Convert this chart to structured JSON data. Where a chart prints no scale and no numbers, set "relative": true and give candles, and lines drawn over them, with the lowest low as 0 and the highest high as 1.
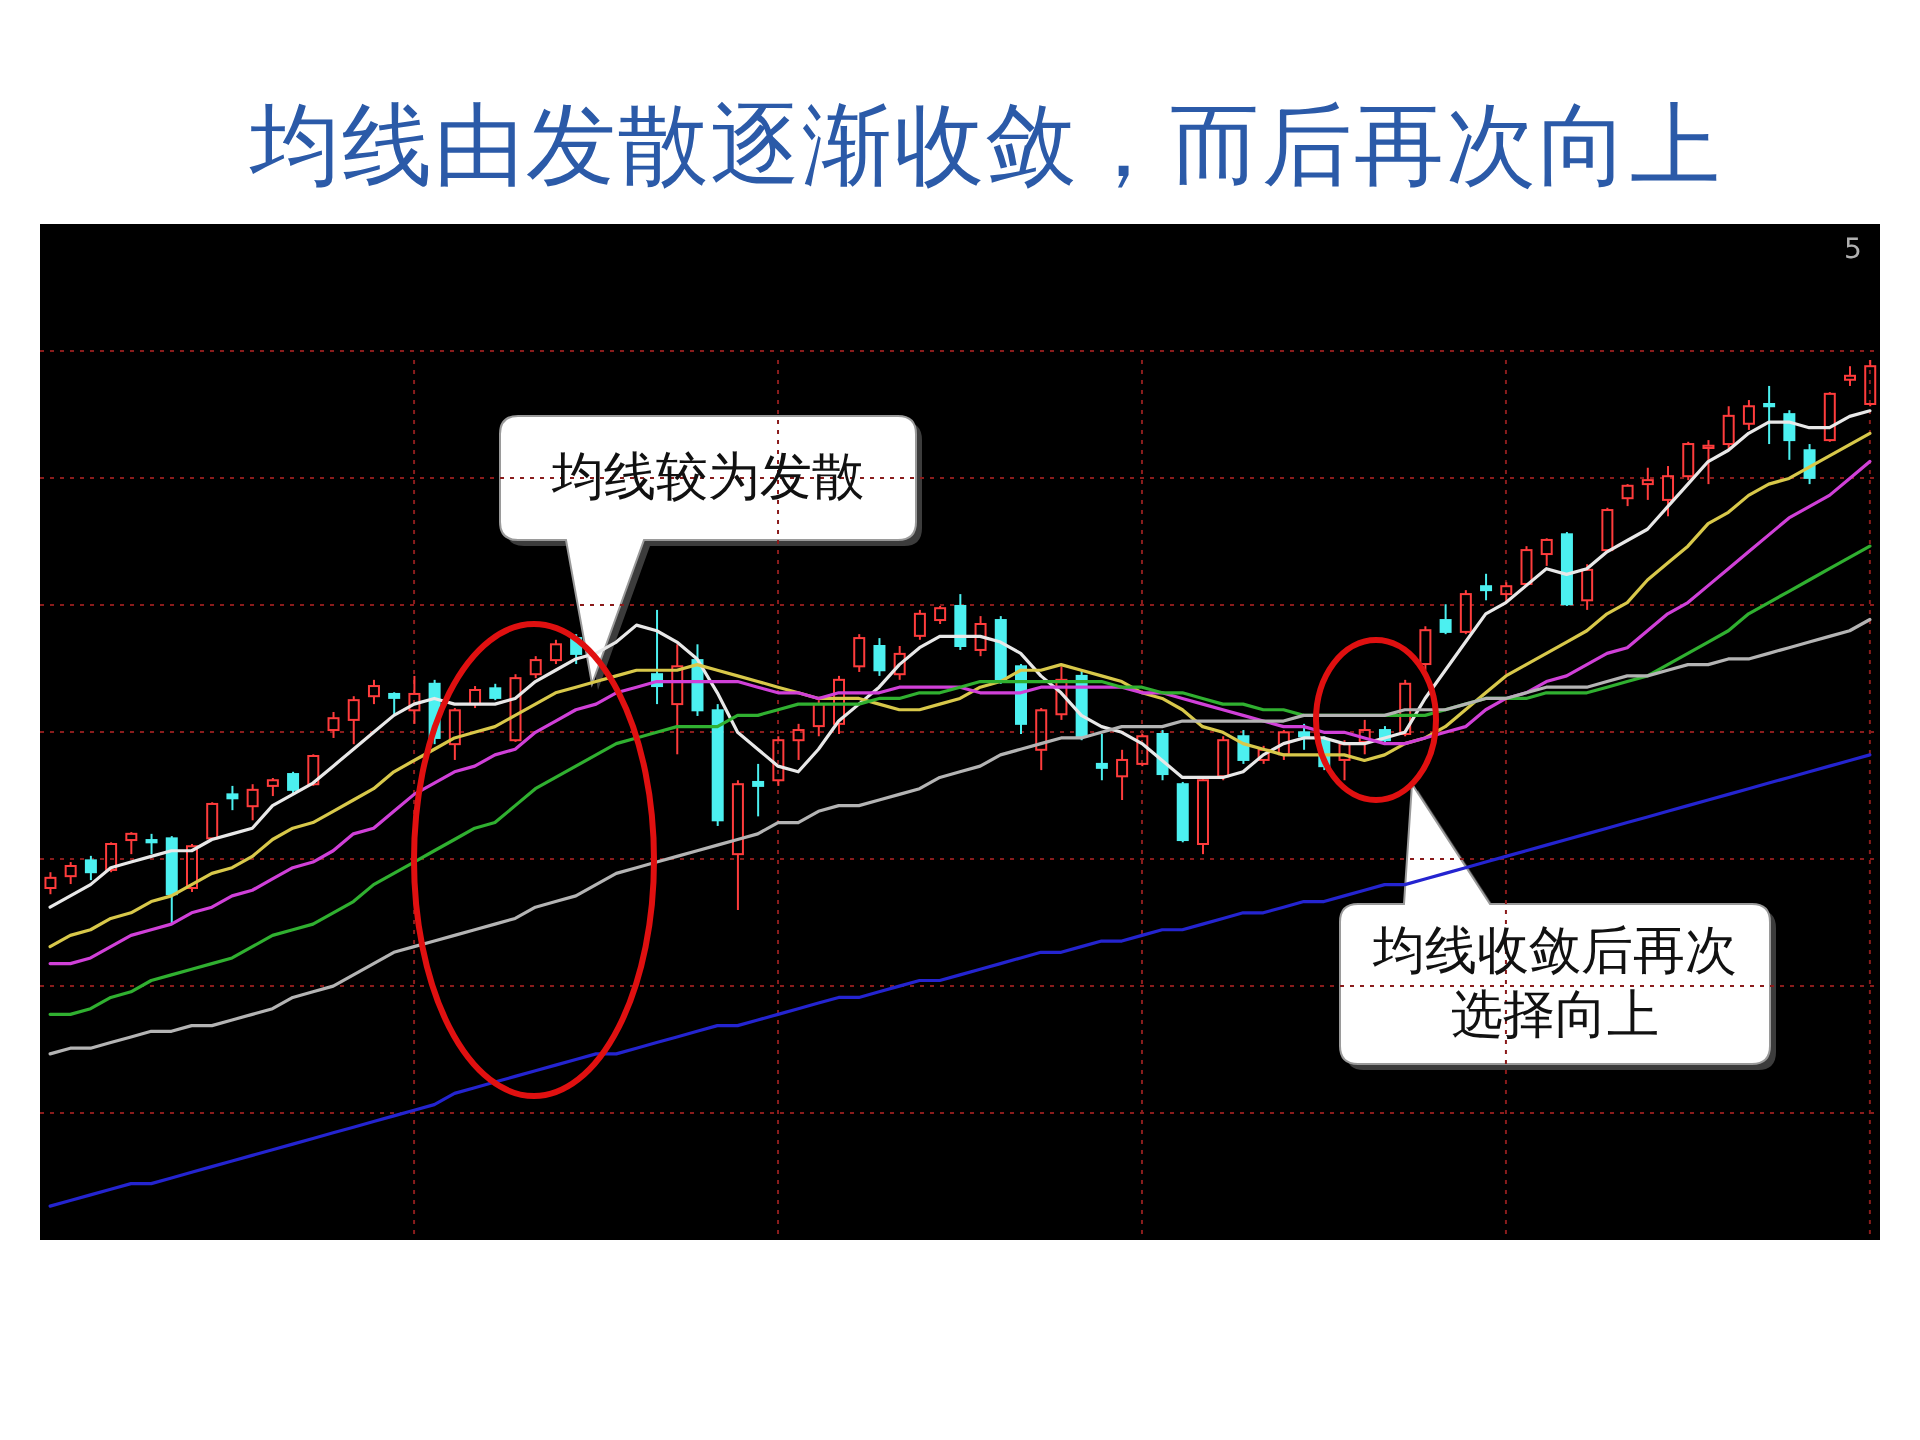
{
  "chart_data": {
    "type": "candlestick",
    "title": "均线由发散逐渐收敛，而后再次向上",
    "annotations": [
      "均线较为发散",
      "均线收敛后再次选择向上",
      "5"
    ],
    "relative": true,
    "grid": true,
    "tick_labels": false,
    "categories": [
      null,
      null,
      null,
      null,
      null,
      null,
      null,
      null,
      null,
      null,
      null,
      null,
      null,
      null,
      null,
      null,
      null,
      null,
      null,
      null,
      null,
      null,
      null,
      null,
      null,
      null,
      null,
      null,
      null,
      null,
      null,
      null,
      null,
      null,
      null,
      null,
      null,
      null,
      null,
      null,
      null,
      null,
      null,
      null,
      null,
      null,
      null,
      null,
      null,
      null,
      null,
      null,
      null,
      null,
      null,
      null,
      null,
      null,
      null,
      null,
      null,
      null,
      null,
      null,
      null,
      null,
      null,
      null,
      null,
      null,
      null,
      null,
      null,
      null,
      null,
      null,
      null,
      null,
      null,
      null,
      null,
      null,
      null,
      null,
      null,
      null,
      null,
      null,
      null,
      null,
      null
    ],
    "ohlc": [
      [
        0.064,
        0.092,
        0.053,
        0.082
      ],
      [
        0.085,
        0.11,
        0.071,
        0.103
      ],
      [
        0.113,
        0.121,
        0.078,
        0.092
      ],
      [
        0.096,
        0.145,
        0.092,
        0.142
      ],
      [
        0.149,
        0.163,
        0.124,
        0.16
      ],
      [
        0.149,
        0.16,
        0.124,
        0.145
      ],
      [
        0.152,
        0.156,
        0,
        0.053
      ],
      [
        0.064,
        0.142,
        0.057,
        0.138
      ],
      [
        0.152,
        0.216,
        0.149,
        0.213
      ],
      [
        0.23,
        0.245,
        0.202,
        0.223
      ],
      [
        0.209,
        0.248,
        0.184,
        0.238
      ],
      [
        0.245,
        0.259,
        0.227,
        0.255
      ],
      [
        0.266,
        0.27,
        0.23,
        0.238
      ],
      [
        0.248,
        0.301,
        0.245,
        0.298
      ],
      [
        0.344,
        0.376,
        0.33,
        0.365
      ],
      [
        0.362,
        0.404,
        0.319,
        0.397
      ],
      [
        0.404,
        0.433,
        0.39,
        0.422
      ],
      [
        0.408,
        0.411,
        0.369,
        0.401
      ],
      [
        0.379,
        0.44,
        0.355,
        0.408
      ],
      [
        0.426,
        0.433,
        0.319,
        0.33
      ],
      [
        0.319,
        0.383,
        0.291,
        0.379
      ],
      [
        0.39,
        0.422,
        0.383,
        0.415
      ],
      [
        0.418,
        0.426,
        0.397,
        0.401
      ],
      [
        0.326,
        0.443,
        0.323,
        0.436
      ],
      [
        0.443,
        0.475,
        0.436,
        0.468
      ],
      [
        0.468,
        0.504,
        0.461,
        0.496
      ],
      [
        0.507,
        0.514,
        0.461,
        0.479
      ],
      null,
      null,
      null,
      [
        0.443,
        0.557,
        0.39,
        0.422
      ],
      [
        0.39,
        0.496,
        0.301,
        0.457
      ],
      [
        0.468,
        0.496,
        0.369,
        0.379
      ],
      [
        0.379,
        0.39,
        0.174,
        0.184
      ],
      [
        0.124,
        0.255,
        0.025,
        0.248
      ],
      [
        0.252,
        0.284,
        0.191,
        0.245
      ],
      [
        0.255,
        0.333,
        0.245,
        0.326
      ],
      [
        0.326,
        0.355,
        0.291,
        0.344
      ],
      [
        0.351,
        0.397,
        0.333,
        0.39
      ],
      [
        0.355,
        0.44,
        0.337,
        0.433
      ],
      [
        0.457,
        0.514,
        0.447,
        0.507
      ],
      [
        0.493,
        0.507,
        0.44,
        0.45
      ],
      [
        0.443,
        0.493,
        0.433,
        0.479
      ],
      [
        0.511,
        0.557,
        0.504,
        0.55
      ],
      [
        0.539,
        0.564,
        0.532,
        0.56
      ],
      [
        0.564,
        0.585,
        0.486,
        0.493
      ],
      [
        0.486,
        0.546,
        0.475,
        0.532
      ],
      [
        0.539,
        0.546,
        0.426,
        0.433
      ],
      [
        0.457,
        0.461,
        0.337,
        0.355
      ],
      [
        0.309,
        0.383,
        0.273,
        0.379
      ],
      [
        0.372,
        0.457,
        0.362,
        0.433
      ],
      [
        0.44,
        0.45,
        0.326,
        0.333
      ],
      [
        0.284,
        0.337,
        0.255,
        0.277
      ],
      [
        0.262,
        0.309,
        0.22,
        0.291
      ],
      [
        0.284,
        0.337,
        0.28,
        0.333
      ],
      [
        0.337,
        0.344,
        0.255,
        0.266
      ],
      [
        0.248,
        0.252,
        0.145,
        0.149
      ],
      [
        0.142,
        0.262,
        0.124,
        0.255
      ],
      [
        0.262,
        0.333,
        0.255,
        0.326
      ],
      [
        0.333,
        0.344,
        0.284,
        0.291
      ],
      [
        0.291,
        0.316,
        0.284,
        0.309
      ],
      [
        0.301,
        0.344,
        0.291,
        0.34
      ],
      [
        0.34,
        0.355,
        0.309,
        0.333
      ],
      [
        0.326,
        0.333,
        0.273,
        0.28
      ],
      [
        0.291,
        0.326,
        0.255,
        0.319
      ],
      [
        0.323,
        0.362,
        0.301,
        0.344
      ],
      [
        0.344,
        0.351,
        0.319,
        0.326
      ],
      [
        0.337,
        0.433,
        0.333,
        0.426
      ],
      [
        0.461,
        0.528,
        0.45,
        0.521
      ],
      [
        0.539,
        0.567,
        0.514,
        0.518
      ],
      [
        0.518,
        0.592,
        0.514,
        0.585
      ],
      [
        0.599,
        0.621,
        0.574,
        0.592
      ],
      [
        0.585,
        0.606,
        0.574,
        0.599
      ],
      [
        0.603,
        0.67,
        0.599,
        0.663
      ],
      [
        0.656,
        0.684,
        0.635,
        0.681
      ],
      [
        0.691,
        0.695,
        0.564,
        0.567
      ],
      [
        0.574,
        0.638,
        0.557,
        0.628
      ],
      [
        0.663,
        0.738,
        0.66,
        0.734
      ],
      [
        0.755,
        0.78,
        0.741,
        0.777
      ],
      [
        0.78,
        0.809,
        0.752,
        0.787
      ],
      [
        0.752,
        0.812,
        0.723,
        0.794
      ],
      [
        0.794,
        0.855,
        0.787,
        0.851
      ],
      [
        0.844,
        0.858,
        0.78,
        0.848
      ],
      [
        0.851,
        0.918,
        0.84,
        0.901
      ],
      [
        0.887,
        0.929,
        0.876,
        0.918
      ],
      [
        0.922,
        0.954,
        0.851,
        0.918
      ],
      [
        0.904,
        0.911,
        0.823,
        0.858
      ],
      [
        0.84,
        0.851,
        0.78,
        0.791
      ],
      [
        0.858,
        0.943,
        0.855,
        0.94
      ],
      [
        0.965,
        0.989,
        0.954,
        0.972
      ],
      [
        0.922,
        1,
        0.918,
        0.989
      ]
    ],
    "colors": [
      "#ff3c3c",
      "#ff3c3c",
      "#4cf0f0",
      "#ff3c3c",
      "#ff3c3c",
      "#4cf0f0",
      "#4cf0f0",
      "#ff3c3c",
      "#ff3c3c",
      "#4cf0f0",
      "#ff3c3c",
      "#ff3c3c",
      "#4cf0f0",
      "#ff3c3c",
      "#ff3c3c",
      "#ff3c3c",
      "#ff3c3c",
      "#4cf0f0",
      "#ff3c3c",
      "#4cf0f0",
      "#ff3c3c",
      "#ff3c3c",
      "#4cf0f0",
      "#ff3c3c",
      "#ff3c3c",
      "#ff3c3c",
      "#4cf0f0",
      null,
      null,
      null,
      "#4cf0f0",
      "#ff3c3c",
      "#4cf0f0",
      "#4cf0f0",
      "#ff3c3c",
      "#4cf0f0",
      "#ff3c3c",
      "#ff3c3c",
      "#ff3c3c",
      "#ff3c3c",
      "#ff3c3c",
      "#4cf0f0",
      "#ff3c3c",
      "#ff3c3c",
      "#ff3c3c",
      "#4cf0f0",
      "#ff3c3c",
      "#4cf0f0",
      "#4cf0f0",
      "#ff3c3c",
      "#ff3c3c",
      "#4cf0f0",
      "#4cf0f0",
      "#ff3c3c",
      "#ff3c3c",
      "#4cf0f0",
      "#4cf0f0",
      "#ff3c3c",
      "#ff3c3c",
      "#4cf0f0",
      "#ff3c3c",
      "#ff3c3c",
      "#4cf0f0",
      "#4cf0f0",
      "#ff3c3c",
      "#ff3c3c",
      "#4cf0f0",
      "#ff3c3c",
      "#ff3c3c",
      "#4cf0f0",
      "#ff3c3c",
      "#4cf0f0",
      "#ff3c3c",
      "#ff3c3c",
      "#ff3c3c",
      "#4cf0f0",
      "#ff3c3c",
      "#ff3c3c",
      "#ff3c3c",
      "#ff3c3c",
      "#ff3c3c",
      "#ff3c3c",
      "#ff3c3c",
      "#ff3c3c",
      "#ff3c3c",
      "#4cf0f0",
      "#4cf0f0",
      "#4cf0f0",
      "#ff3c3c",
      "#ff3c3c",
      "#ff3c3c"
    ],
    "series": [
      {
        "type": "line",
        "color": "#e8e8e8",
        "values": [
          0.03,
          0.05,
          0.07,
          0.1,
          0.11,
          0.12,
          0.13,
          0.13,
          0.15,
          0.16,
          0.17,
          0.21,
          0.23,
          0.25,
          0.28,
          0.31,
          0.34,
          0.37,
          0.39,
          0.4,
          0.39,
          0.39,
          0.39,
          0.4,
          0.43,
          0.45,
          0.47,
          0.48,
          0.5,
          0.53,
          0.52,
          0.5,
          0.47,
          0.41,
          0.34,
          0.31,
          0.28,
          0.27,
          0.31,
          0.36,
          0.39,
          0.42,
          0.46,
          0.49,
          0.51,
          0.51,
          0.51,
          0.5,
          0.48,
          0.44,
          0.41,
          0.37,
          0.35,
          0.34,
          0.32,
          0.29,
          0.26,
          0.26,
          0.26,
          0.27,
          0.3,
          0.32,
          0.33,
          0.33,
          0.32,
          0.32,
          0.33,
          0.34,
          0.4,
          0.45,
          0.5,
          0.55,
          0.57,
          0.6,
          0.63,
          0.62,
          0.63,
          0.66,
          0.68,
          0.7,
          0.74,
          0.78,
          0.82,
          0.84,
          0.87,
          0.89,
          0.89,
          0.88,
          0.88,
          0.9,
          0.91
        ]
      },
      {
        "type": "line",
        "color": "#d8c84a",
        "values": [
          -0.04,
          -0.02,
          -0.01,
          0.01,
          0.02,
          0.04,
          0.05,
          0.07,
          0.09,
          0.1,
          0.12,
          0.15,
          0.17,
          0.18,
          0.2,
          0.22,
          0.24,
          0.27,
          0.29,
          0.31,
          0.33,
          0.34,
          0.35,
          0.37,
          0.39,
          0.41,
          0.42,
          0.43,
          0.44,
          0.45,
          0.45,
          0.45,
          0.46,
          0.45,
          0.44,
          0.43,
          0.42,
          0.41,
          0.4,
          0.4,
          0.4,
          0.39,
          0.38,
          0.38,
          0.39,
          0.4,
          0.42,
          0.43,
          0.45,
          0.45,
          0.46,
          0.45,
          0.44,
          0.43,
          0.41,
          0.4,
          0.38,
          0.35,
          0.34,
          0.32,
          0.31,
          0.3,
          0.3,
          0.3,
          0.3,
          0.29,
          0.3,
          0.32,
          0.33,
          0.35,
          0.38,
          0.41,
          0.44,
          0.46,
          0.48,
          0.5,
          0.52,
          0.55,
          0.57,
          0.61,
          0.64,
          0.67,
          0.71,
          0.73,
          0.76,
          0.78,
          0.79,
          0.81,
          0.83,
          0.85,
          0.87
        ]
      },
      {
        "type": "line",
        "color": "#d040d8",
        "values": [
          -0.07,
          -0.07,
          -0.06,
          -0.04,
          -0.02,
          -0.01,
          0.0,
          0.02,
          0.03,
          0.05,
          0.06,
          0.08,
          0.1,
          0.11,
          0.13,
          0.16,
          0.17,
          0.2,
          0.23,
          0.25,
          0.27,
          0.28,
          0.3,
          0.31,
          0.34,
          0.36,
          0.38,
          0.39,
          0.41,
          0.42,
          0.43,
          0.43,
          0.43,
          0.43,
          0.43,
          0.42,
          0.41,
          0.41,
          0.4,
          0.41,
          0.41,
          0.41,
          0.42,
          0.42,
          0.42,
          0.42,
          0.41,
          0.41,
          0.41,
          0.42,
          0.42,
          0.42,
          0.42,
          0.42,
          0.41,
          0.41,
          0.4,
          0.39,
          0.38,
          0.37,
          0.36,
          0.35,
          0.35,
          0.34,
          0.34,
          0.33,
          0.32,
          0.32,
          0.33,
          0.34,
          0.35,
          0.38,
          0.4,
          0.41,
          0.43,
          0.44,
          0.46,
          0.48,
          0.49,
          0.52,
          0.55,
          0.57,
          0.6,
          0.63,
          0.66,
          0.69,
          0.72,
          0.74,
          0.76,
          0.79,
          0.82
        ]
      },
      {
        "type": "line",
        "color": "#30b030",
        "values": [
          -0.16,
          -0.16,
          -0.15,
          -0.13,
          -0.12,
          -0.1,
          -0.09,
          -0.08,
          -0.07,
          -0.06,
          -0.04,
          -0.02,
          -0.01,
          0.0,
          0.02,
          0.04,
          0.07,
          0.09,
          0.11,
          0.13,
          0.15,
          0.17,
          0.18,
          0.21,
          0.24,
          0.26,
          0.28,
          0.3,
          0.32,
          0.33,
          0.34,
          0.35,
          0.35,
          0.35,
          0.37,
          0.37,
          0.38,
          0.39,
          0.39,
          0.39,
          0.39,
          0.4,
          0.4,
          0.41,
          0.41,
          0.42,
          0.43,
          0.43,
          0.43,
          0.43,
          0.43,
          0.43,
          0.43,
          0.42,
          0.42,
          0.41,
          0.41,
          0.4,
          0.39,
          0.39,
          0.38,
          0.38,
          0.37,
          0.37,
          0.37,
          0.37,
          0.37,
          0.37,
          0.37,
          0.38,
          0.39,
          0.4,
          0.4,
          0.4,
          0.41,
          0.41,
          0.41,
          0.42,
          0.43,
          0.44,
          0.46,
          0.48,
          0.5,
          0.52,
          0.55,
          0.57,
          0.59,
          0.61,
          0.63,
          0.65,
          0.67
        ]
      },
      {
        "type": "line",
        "color": "#b4b4b4",
        "values": [
          -0.23,
          -0.22,
          -0.22,
          -0.21,
          -0.2,
          -0.19,
          -0.19,
          -0.18,
          -0.18,
          -0.17,
          -0.16,
          -0.15,
          -0.13,
          -0.12,
          -0.11,
          -0.09,
          -0.07,
          -0.05,
          -0.04,
          -0.03,
          -0.02,
          -0.01,
          0.0,
          0.01,
          0.03,
          0.04,
          0.05,
          0.07,
          0.09,
          0.1,
          0.11,
          0.12,
          0.13,
          0.14,
          0.15,
          0.16,
          0.18,
          0.18,
          0.2,
          0.21,
          0.21,
          0.22,
          0.23,
          0.24,
          0.26,
          0.27,
          0.28,
          0.3,
          0.31,
          0.32,
          0.33,
          0.33,
          0.34,
          0.35,
          0.35,
          0.35,
          0.36,
          0.36,
          0.36,
          0.36,
          0.36,
          0.36,
          0.37,
          0.37,
          0.37,
          0.37,
          0.37,
          0.38,
          0.38,
          0.38,
          0.39,
          0.4,
          0.4,
          0.41,
          0.42,
          0.42,
          0.42,
          0.43,
          0.44,
          0.44,
          0.45,
          0.46,
          0.46,
          0.47,
          0.47,
          0.48,
          0.49,
          0.5,
          0.51,
          0.52,
          0.54
        ]
      },
      {
        "type": "line",
        "color": "#2424d0",
        "values": [
          -0.5,
          -0.49,
          -0.48,
          -0.47,
          -0.46,
          -0.46,
          -0.45,
          -0.44,
          -0.43,
          -0.42,
          -0.41,
          -0.4,
          -0.39,
          -0.38,
          -0.37,
          -0.36,
          -0.35,
          -0.34,
          -0.33,
          -0.32,
          -0.3,
          -0.29,
          -0.28,
          -0.27,
          -0.26,
          -0.25,
          -0.24,
          -0.23,
          -0.23,
          -0.22,
          -0.21,
          -0.2,
          -0.19,
          -0.18,
          -0.18,
          -0.17,
          -0.16,
          -0.15,
          -0.14,
          -0.13,
          -0.13,
          -0.12,
          -0.11,
          -0.1,
          -0.1,
          -0.09,
          -0.08,
          -0.07,
          -0.06,
          -0.05,
          -0.05,
          -0.04,
          -0.03,
          -0.03,
          -0.02,
          -0.01,
          -0.01,
          0.0,
          0.01,
          0.02,
          0.02,
          0.03,
          0.04,
          0.04,
          0.05,
          0.06,
          0.07,
          0.07,
          0.08,
          0.09,
          0.1,
          0.11,
          0.12,
          0.13,
          0.14,
          0.15,
          0.16,
          0.17,
          0.18,
          0.19,
          0.2,
          0.21,
          0.22,
          0.23,
          0.24,
          0.25,
          0.26,
          0.27,
          0.28,
          0.29,
          0.3
        ]
      }
    ]
  }
}
